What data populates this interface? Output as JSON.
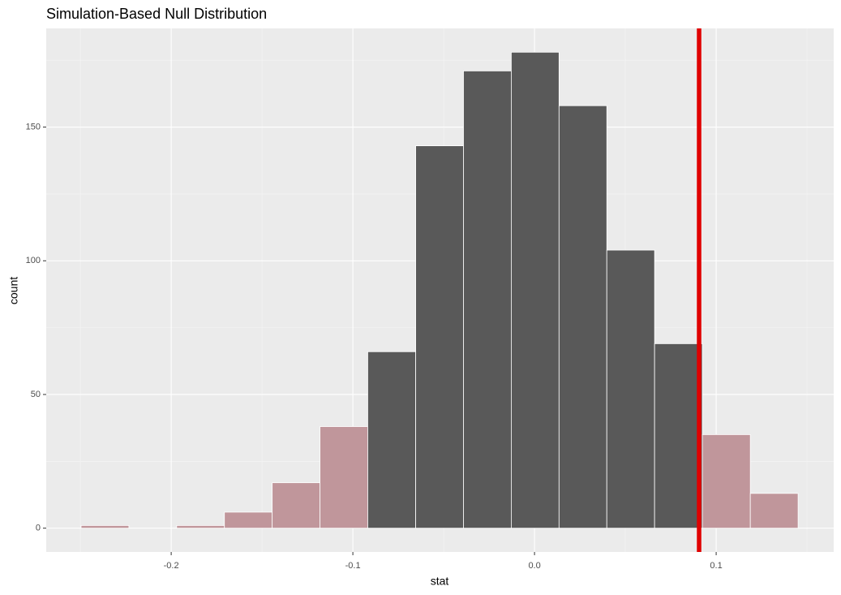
{
  "chart_data": {
    "type": "histogram",
    "title": "Simulation-Based Null Distribution",
    "x_label": "stat",
    "y_label": "count",
    "bins": [
      -0.2496,
      -0.2233,
      -0.197,
      -0.1707,
      -0.1444,
      -0.1181,
      -0.0918,
      -0.0654,
      -0.0391,
      -0.0128,
      0.0135,
      0.0398,
      0.0661,
      0.0924,
      0.1188,
      0.1451
    ],
    "values": [
      1,
      0,
      1,
      6,
      17,
      38,
      66,
      143,
      171,
      178,
      158,
      104,
      69,
      35,
      13
    ],
    "observed_stat": 0.0906,
    "color": "#595959",
    "shade_color": "#c0969b",
    "line_color": "#e00000",
    "xlim": [
      -0.2688,
      0.1647
    ],
    "ylim": [
      -8.9,
      186.9
    ],
    "xticks": [
      -0.2,
      -0.1,
      {
        "value": 0,
        "label": "0.0"
      },
      0.1
    ],
    "yticks": [
      0,
      50,
      100,
      150
    ],
    "grid": true
  }
}
